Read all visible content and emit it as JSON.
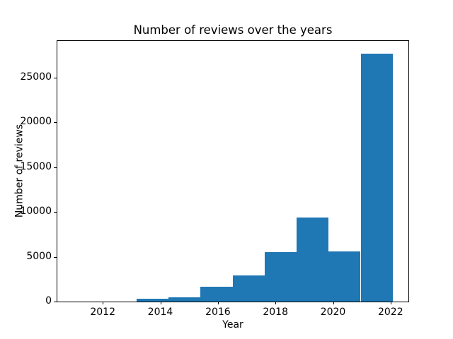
{
  "chart_data": {
    "type": "bar",
    "subtype": "histogram",
    "title": "Number of reviews over the years",
    "xlabel": "Year",
    "ylabel": "Number of reviews",
    "bar_color": "#1f77b4",
    "background_color": "#ffffff",
    "grid": false,
    "legend": false,
    "xlim": [
      2010.42,
      2022.62
    ],
    "ylim": [
      0,
      29100
    ],
    "x_ticks": [
      2012,
      2014,
      2016,
      2018,
      2020,
      2022
    ],
    "y_ticks": [
      0,
      5000,
      10000,
      15000,
      20000,
      25000
    ],
    "bin_edges": [
      2013.17,
      2014.28,
      2015.39,
      2016.51,
      2017.62,
      2018.73,
      2019.85,
      2020.96,
      2022.08
    ],
    "values": [
      300,
      500,
      1670,
      2900,
      5550,
      9400,
      5630,
      27700
    ]
  }
}
